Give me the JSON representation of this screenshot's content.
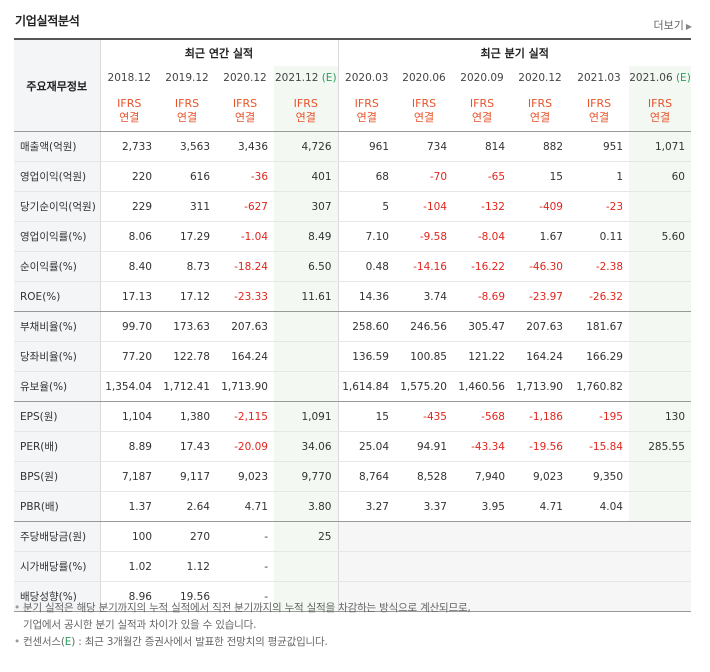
{
  "title": "기업실적분석",
  "more_link": "더보기",
  "header": {
    "row_label": "주요재무정보",
    "annual_group": "최근 연간 실적",
    "quarter_group": "최근 분기 실적",
    "annual_periods": [
      "2018.12",
      "2019.12",
      "2020.12",
      "2021.12"
    ],
    "annual_est_mark": "(E)",
    "quarter_periods": [
      "2020.03",
      "2020.06",
      "2020.09",
      "2020.12",
      "2021.03",
      "2021.06"
    ],
    "quarter_est_mark": "(E)",
    "basis_line1": "IFRS",
    "basis_line2": "연결"
  },
  "rows": [
    {
      "label": "매출액(억원)",
      "values": [
        "2,733",
        "3,563",
        "3,436",
        "4,726",
        "961",
        "734",
        "814",
        "882",
        "951",
        "1,071"
      ]
    },
    {
      "label": "영업이익(억원)",
      "values": [
        "220",
        "616",
        "-36",
        "401",
        "68",
        "-70",
        "-65",
        "15",
        "1",
        "60"
      ]
    },
    {
      "label": "당기순이익(억원)",
      "values": [
        "229",
        "311",
        "-627",
        "307",
        "5",
        "-104",
        "-132",
        "-409",
        "-23",
        ""
      ]
    },
    {
      "label": "영업이익률(%)",
      "values": [
        "8.06",
        "17.29",
        "-1.04",
        "8.49",
        "7.10",
        "-9.58",
        "-8.04",
        "1.67",
        "0.11",
        "5.60"
      ]
    },
    {
      "label": "순이익률(%)",
      "values": [
        "8.40",
        "8.73",
        "-18.24",
        "6.50",
        "0.48",
        "-14.16",
        "-16.22",
        "-46.30",
        "-2.38",
        ""
      ]
    },
    {
      "label": "ROE(%)",
      "values": [
        "17.13",
        "17.12",
        "-23.33",
        "11.61",
        "14.36",
        "3.74",
        "-8.69",
        "-23.97",
        "-26.32",
        ""
      ]
    },
    {
      "label": "부채비율(%)",
      "values": [
        "99.70",
        "173.63",
        "207.63",
        "",
        "258.60",
        "246.56",
        "305.47",
        "207.63",
        "181.67",
        ""
      ]
    },
    {
      "label": "당좌비율(%)",
      "values": [
        "77.20",
        "122.78",
        "164.24",
        "",
        "136.59",
        "100.85",
        "121.22",
        "164.24",
        "166.29",
        ""
      ]
    },
    {
      "label": "유보율(%)",
      "values": [
        "1,354.04",
        "1,712.41",
        "1,713.90",
        "",
        "1,614.84",
        "1,575.20",
        "1,460.56",
        "1,713.90",
        "1,760.82",
        ""
      ]
    },
    {
      "label": "EPS(원)",
      "values": [
        "1,104",
        "1,380",
        "-2,115",
        "1,091",
        "15",
        "-435",
        "-568",
        "-1,186",
        "-195",
        "130"
      ]
    },
    {
      "label": "PER(배)",
      "values": [
        "8.89",
        "17.43",
        "-20.09",
        "34.06",
        "25.04",
        "94.91",
        "-43.34",
        "-19.56",
        "-15.84",
        "285.55"
      ]
    },
    {
      "label": "BPS(원)",
      "values": [
        "7,187",
        "9,117",
        "9,023",
        "9,770",
        "8,764",
        "8,528",
        "7,940",
        "9,023",
        "9,350",
        ""
      ]
    },
    {
      "label": "PBR(배)",
      "values": [
        "1.37",
        "2.64",
        "4.71",
        "3.80",
        "3.27",
        "3.37",
        "3.95",
        "4.71",
        "4.04",
        ""
      ]
    },
    {
      "label": "주당배당금(원)",
      "values": [
        "100",
        "270",
        "-",
        "25",
        "",
        "",
        "",
        "",
        "",
        ""
      ]
    },
    {
      "label": "시가배당률(%)",
      "values": [
        "1.02",
        "1.12",
        "-",
        "",
        "",
        "",
        "",
        "",
        "",
        ""
      ]
    },
    {
      "label": "배당성향(%)",
      "values": [
        "8.96",
        "19.56",
        "-",
        "",
        "",
        "",
        "",
        "",
        "",
        ""
      ]
    }
  ],
  "notes": {
    "line1": "분기 실적은 해당 분기까지의 누적 실적에서 직전 분기까지의 누적 실적을 차감하는 방식으로 계산되므로,",
    "line2": "기업에서 공시한 분기 실적과 차이가 있을 수 있습니다.",
    "line3_prefix": "컨센서스(",
    "line3_mark": "E",
    "line3_suffix": ") : 최근 3개월간 증권사에서 발표한 전망치의 평균값입니다."
  }
}
